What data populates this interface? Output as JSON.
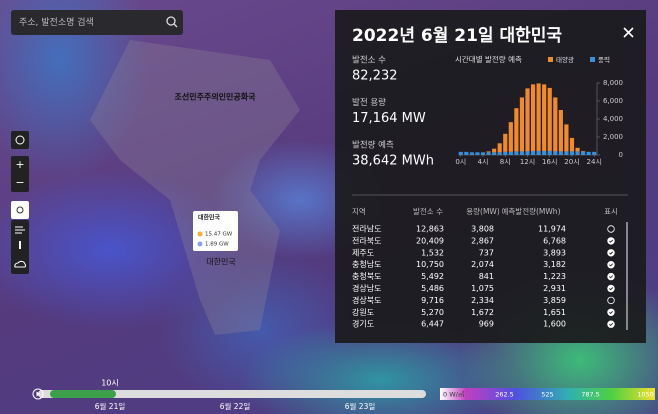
{
  "search": {
    "placeholder": "주소, 발전소명 검색"
  },
  "map": {
    "labels": [
      "조선민주주의인민공화국",
      "대한민국"
    ],
    "tooltip": {
      "title": "대한민국",
      "solar": "15.47 GW",
      "wind": "1.89 GW"
    }
  },
  "panel": {
    "title": "2022년 6월 21일 대한민국",
    "stats": [
      {
        "label": "발전소 수",
        "value": "82,232"
      },
      {
        "label": "발전 용량",
        "value": "17,164 MW"
      },
      {
        "label": "발전량 예측",
        "value": "38,642 MWh"
      }
    ],
    "table": {
      "header": [
        "지역",
        "발전소 수",
        "용량(MW)",
        "예측발전량(MWh)",
        "표시"
      ],
      "rows": [
        [
          "전라남도",
          "12,863",
          "3,808",
          "11,974"
        ],
        [
          "전라북도",
          "20,409",
          "2,867",
          "6,768"
        ],
        [
          "제주도",
          "1,532",
          "737",
          "3,893"
        ],
        [
          "충청남도",
          "10,750",
          "2,074",
          "3,182"
        ],
        [
          "충청북도",
          "5,492",
          "841",
          "1,223"
        ],
        [
          "경상남도",
          "5,486",
          "1,075",
          "2,931"
        ],
        [
          "경상북도",
          "9,716",
          "2,334",
          "3,859"
        ],
        [
          "강원도",
          "5,270",
          "1,672",
          "1,651"
        ],
        [
          "경기도",
          "6,447",
          "969",
          "1,600"
        ]
      ],
      "shown": [
        false,
        true,
        true,
        true,
        true,
        true,
        false,
        true,
        true
      ]
    }
  },
  "chart_data": {
    "type": "bar",
    "stacked": true,
    "title": "시간대별 발전량 예측",
    "x": [
      0,
      1,
      2,
      3,
      4,
      5,
      6,
      7,
      8,
      9,
      10,
      11,
      12,
      13,
      14,
      15,
      16,
      17,
      18,
      19,
      20,
      21,
      22,
      23,
      24
    ],
    "xlim": [
      -0.5,
      24.5
    ],
    "xticks": [
      {
        "value": 0,
        "label": "0시"
      },
      {
        "value": 4,
        "label": "4시"
      },
      {
        "value": 8,
        "label": "8시"
      },
      {
        "value": 12,
        "label": "12시"
      },
      {
        "value": 16,
        "label": "16시"
      },
      {
        "value": 20,
        "label": "20시"
      },
      {
        "value": 24,
        "label": "24시"
      }
    ],
    "ylim": [
      0,
      8000
    ],
    "yticks": [
      0,
      {
        "value": 2000,
        "label": "2,000"
      },
      {
        "value": 4000,
        "label": "4,000"
      },
      {
        "value": 6000,
        "label": "6,000"
      },
      {
        "value": 8000,
        "label": "8,000"
      }
    ],
    "y_axis_side": "right",
    "grid": false,
    "series": [
      {
        "name": "태양광",
        "color": "#f08a2a",
        "values": [
          0,
          0,
          0,
          0,
          0,
          100,
          400,
          1000,
          2000,
          3300,
          4800,
          6000,
          7000,
          7400,
          7500,
          7400,
          7000,
          6000,
          4600,
          3000,
          1500,
          400,
          50,
          0,
          0
        ]
      },
      {
        "name": "풍력",
        "color": "#3a8fd9",
        "values": [
          350,
          350,
          300,
          300,
          300,
          300,
          300,
          300,
          350,
          350,
          400,
          400,
          400,
          450,
          450,
          450,
          450,
          400,
          400,
          400,
          400,
          400,
          400,
          350,
          350
        ]
      }
    ]
  },
  "timeline": {
    "current": "10시",
    "dates": [
      "6월 21일",
      "6월 22일",
      "6월 23일"
    ]
  },
  "color_scale": {
    "labels": [
      "0 W/㎡",
      "262.5",
      "525",
      "787.5",
      "1050"
    ]
  }
}
